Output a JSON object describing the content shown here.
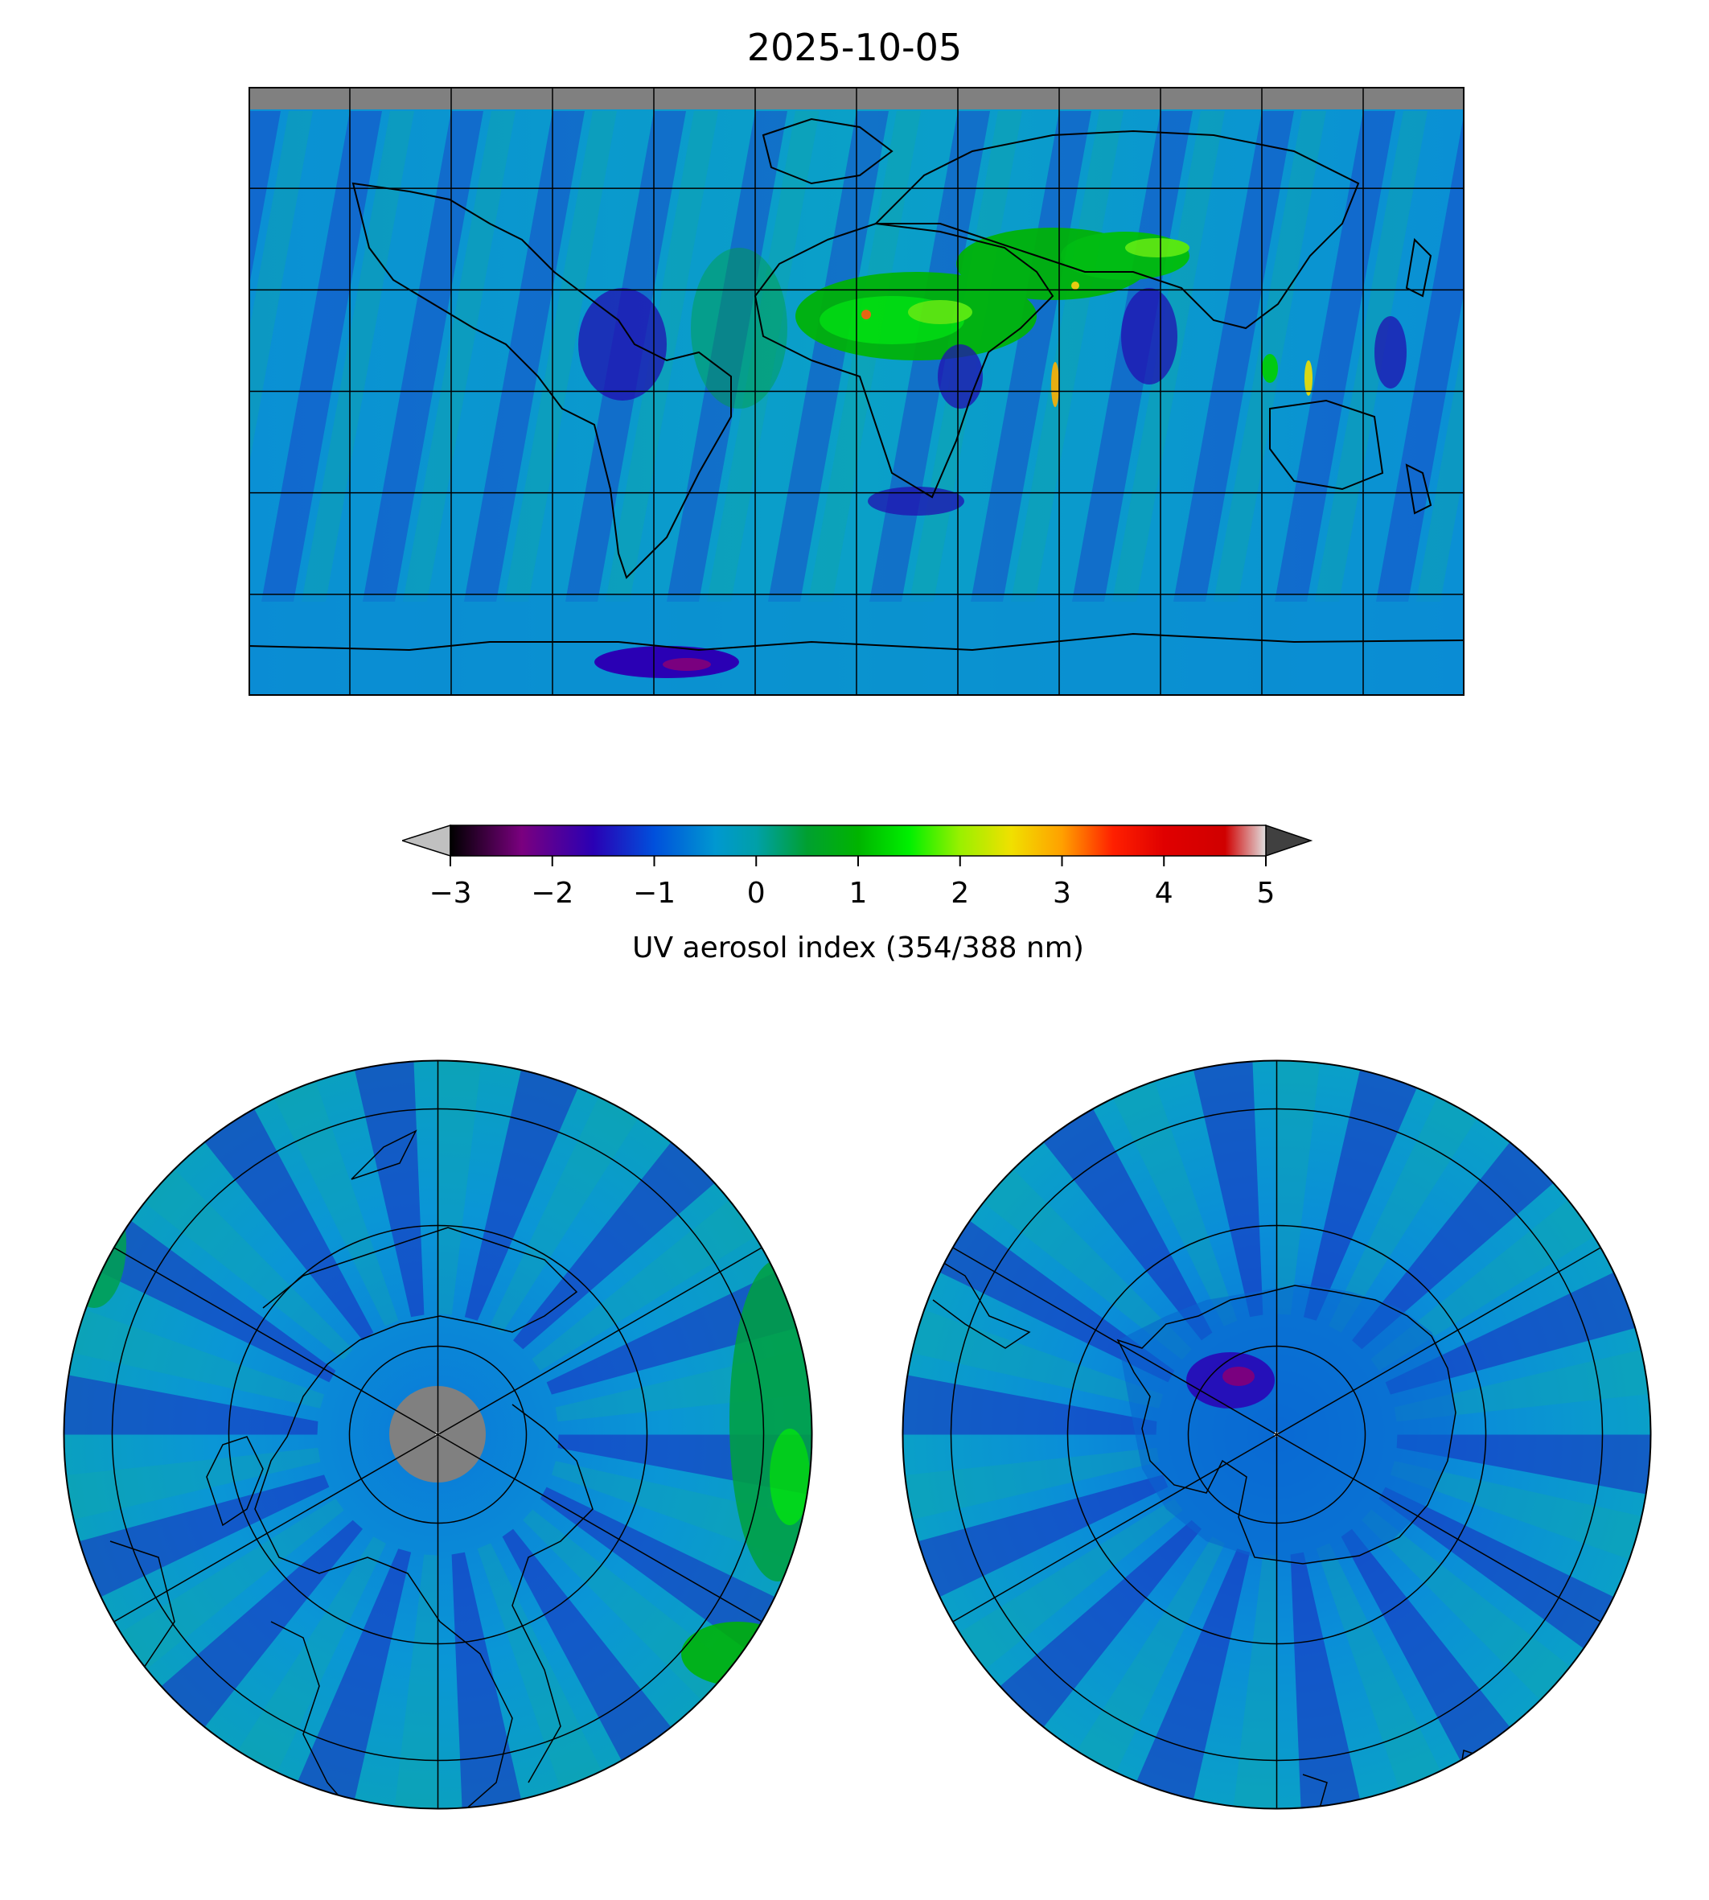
{
  "title": "2025-10-05",
  "colorbar": {
    "label": "UV aerosol index (354/388 nm)",
    "ticks": [
      "−3",
      "−2",
      "−1",
      "0",
      "1",
      "2",
      "3",
      "4",
      "5"
    ],
    "tick_values": [
      -3,
      -2,
      -1,
      0,
      1,
      2,
      3,
      4,
      5
    ],
    "range": [
      -3,
      5
    ],
    "extend": "both",
    "under_color": "#c0c0c0",
    "over_color": "#404040",
    "colormap": [
      {
        "v": -3.0,
        "c": "#000000"
      },
      {
        "v": -2.3,
        "c": "#7a007f"
      },
      {
        "v": -1.6,
        "c": "#2a00b4"
      },
      {
        "v": -1.0,
        "c": "#0050dc"
      },
      {
        "v": -0.4,
        "c": "#0098d0"
      },
      {
        "v": 0.0,
        "c": "#00a0a8"
      },
      {
        "v": 0.5,
        "c": "#00a030"
      },
      {
        "v": 1.0,
        "c": "#00b400"
      },
      {
        "v": 1.5,
        "c": "#00f000"
      },
      {
        "v": 2.0,
        "c": "#9af000"
      },
      {
        "v": 2.5,
        "c": "#f0e000"
      },
      {
        "v": 3.0,
        "c": "#ffa000"
      },
      {
        "v": 3.5,
        "c": "#ff2000"
      },
      {
        "v": 4.0,
        "c": "#e00000"
      },
      {
        "v": 4.6,
        "c": "#d00000"
      },
      {
        "v": 5.0,
        "c": "#e0e0e0"
      }
    ]
  },
  "colors": {
    "no_data": "#808080",
    "ocean_base": "#0a96d8",
    "coastline": "#000000",
    "gridline": "#000000"
  },
  "maps": {
    "world": {
      "projection": "plate-carree",
      "graticule_step_deg": 30
    },
    "north": {
      "projection": "north-polar-stereographic",
      "pole_no_data": true
    },
    "south": {
      "projection": "south-polar-stereographic",
      "pole_no_data": false
    }
  }
}
